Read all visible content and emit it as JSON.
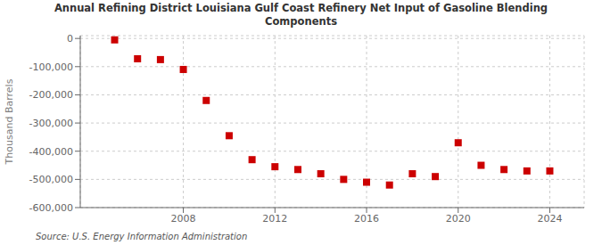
{
  "chart_data": {
    "type": "scatter",
    "title": "Annual Refining District Louisiana Gulf Coast Refinery Net Input of Gasoline Blending\nComponents",
    "y_label": "Thousand Barrels",
    "annotations": [
      "Source: U.S. Energy Information Administration"
    ],
    "x": [
      2005,
      2006,
      2007,
      2008,
      2009,
      2010,
      2011,
      2012,
      2013,
      2014,
      2015,
      2016,
      2017,
      2018,
      2019,
      2020,
      2021,
      2022,
      2023,
      2024
    ],
    "values": [
      -5000,
      -72000,
      -75000,
      -110000,
      -220000,
      -345000,
      -430000,
      -455000,
      -465000,
      -480000,
      -500000,
      -510000,
      -520000,
      -480000,
      -490000,
      -370000,
      -450000,
      -465000,
      -470000,
      -470000
    ],
    "color": "#cc0000",
    "marker": "square",
    "xlim": [
      2003.5,
      2025.5
    ],
    "ylim": [
      -600000,
      10000
    ],
    "xticks": [
      2008,
      2012,
      2016,
      2020,
      2024
    ],
    "yticks": [
      0,
      {
        "value": -100000,
        "label": "-100,000"
      },
      {
        "value": -200000,
        "label": "-200,000"
      },
      {
        "value": -300000,
        "label": "-300,000"
      },
      {
        "value": -400000,
        "label": "-400,000"
      },
      {
        "value": -500000,
        "label": "-500,000"
      },
      {
        "value": -600000,
        "label": "-600,000"
      }
    ],
    "grid": true
  }
}
